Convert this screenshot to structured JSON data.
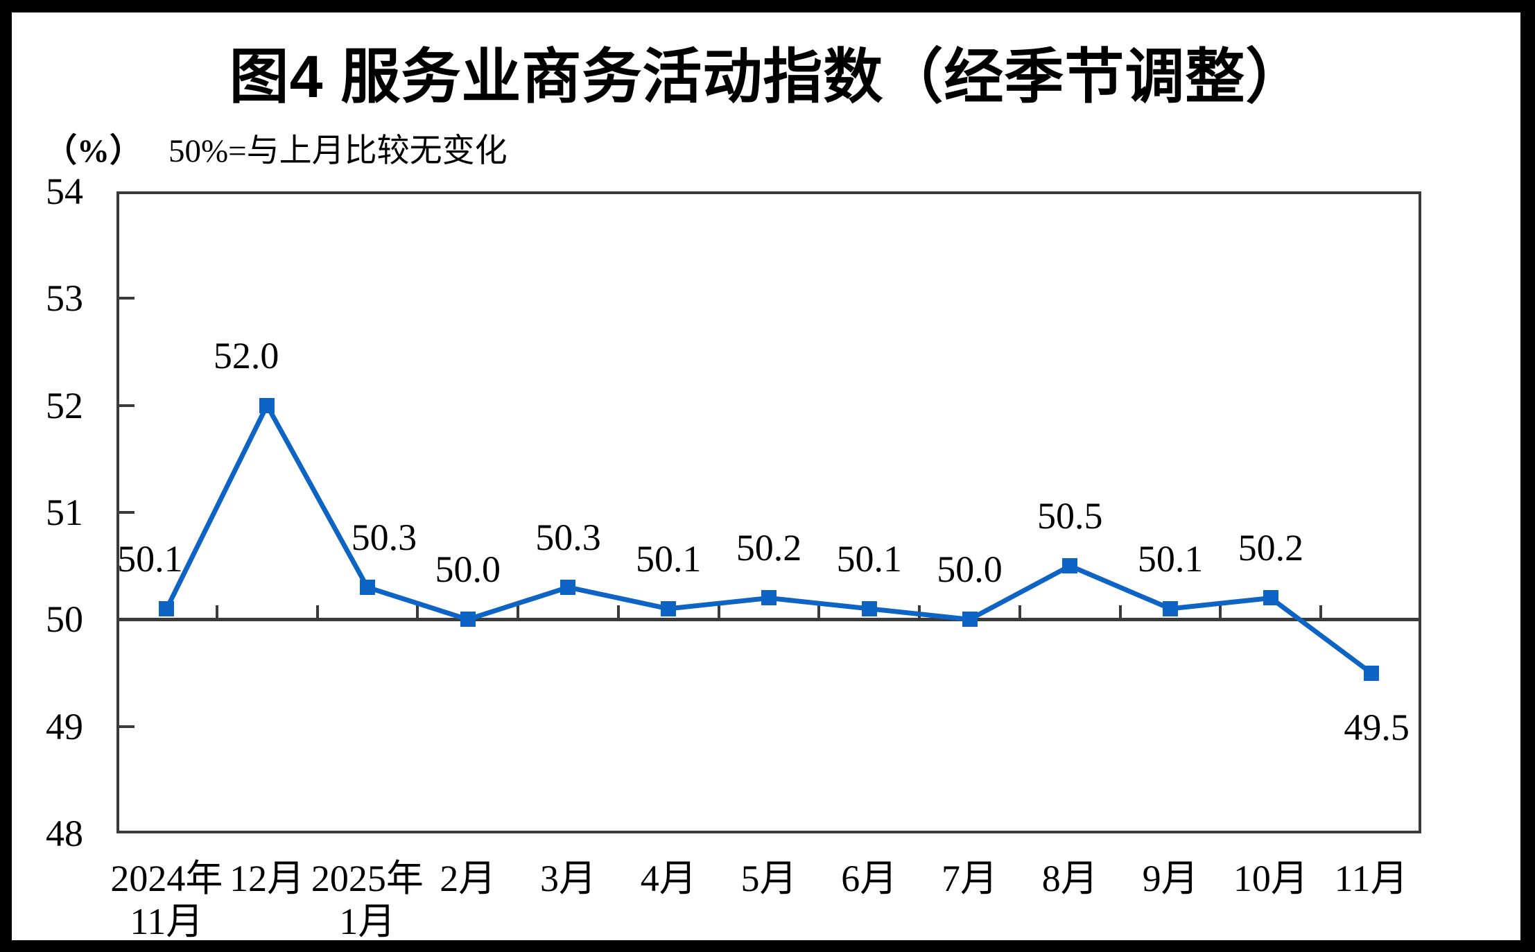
{
  "page": {
    "border_color": "#000000",
    "background_color": "#FFFFFF"
  },
  "header": {
    "title": "图4 服务业商务活动指数（经季节调整）",
    "unit_label": "（%）",
    "reference_note": "50%=与上月比较无变化"
  },
  "chart_data": {
    "type": "line",
    "title": "图4 服务业商务活动指数（经季节调整）",
    "subtitle": "50%=与上月比较无变化",
    "unit": "（%）",
    "categories": [
      "2024年11月",
      "12月",
      "2025年1月",
      "2月",
      "3月",
      "4月",
      "5月",
      "6月",
      "7月",
      "8月",
      "9月",
      "10月",
      "11月"
    ],
    "category_lines": [
      [
        "2024年",
        "11月"
      ],
      [
        "12月"
      ],
      [
        "2025年",
        "1月"
      ],
      [
        "2月"
      ],
      [
        "3月"
      ],
      [
        "4月"
      ],
      [
        "5月"
      ],
      [
        "6月"
      ],
      [
        "7月"
      ],
      [
        "8月"
      ],
      [
        "9月"
      ],
      [
        "10月"
      ],
      [
        "11月"
      ]
    ],
    "values": [
      50.1,
      52.0,
      50.3,
      50.0,
      50.3,
      50.1,
      50.2,
      50.1,
      50.0,
      50.5,
      50.1,
      50.2,
      49.5
    ],
    "data_labels": [
      "50.1",
      "52.0",
      "50.3",
      "50.0",
      "50.3",
      "50.1",
      "50.2",
      "50.1",
      "50.0",
      "50.5",
      "50.1",
      "50.2",
      "49.5"
    ],
    "ylim": [
      48,
      54
    ],
    "yticks": [
      48,
      49,
      50,
      51,
      52,
      53,
      54
    ],
    "baseline": 50,
    "grid": false,
    "legend_position": "none",
    "marker_shape": "square",
    "colors": {
      "series": "#0D64C4",
      "axis": "#3B3B3B",
      "text": "#000000"
    }
  }
}
